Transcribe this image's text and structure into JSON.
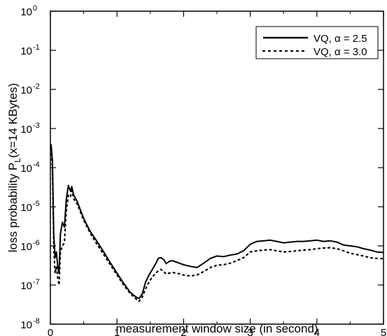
{
  "chart_data": {
    "type": "line",
    "title": "",
    "xlabel": "measurement window size (in second)",
    "ylabel_main": "loss probability P",
    "ylabel_sub": "L",
    "ylabel_tail": "(x=14 KBytes)",
    "xlim": [
      0,
      5
    ],
    "ylim": [
      1e-08,
      1
    ],
    "y_scale": "log",
    "grid": false,
    "legend_position": "top-right",
    "x_ticks": [
      {
        "value": 0,
        "label": "0"
      },
      {
        "value": 1,
        "label": "1"
      },
      {
        "value": 2,
        "label": "2"
      },
      {
        "value": 3,
        "label": "3"
      },
      {
        "value": 4,
        "label": "4"
      },
      {
        "value": 5,
        "label": "5"
      }
    ],
    "y_ticks": [
      {
        "value": 1e-08,
        "base": "10",
        "exp": "-8"
      },
      {
        "value": 1e-07,
        "base": "10",
        "exp": "-7"
      },
      {
        "value": 1e-06,
        "base": "10",
        "exp": "-6"
      },
      {
        "value": 1e-05,
        "base": "10",
        "exp": "-5"
      },
      {
        "value": 0.0001,
        "base": "10",
        "exp": "-4"
      },
      {
        "value": 0.001,
        "base": "10",
        "exp": "-3"
      },
      {
        "value": 0.01,
        "base": "10",
        "exp": "-2"
      },
      {
        "value": 0.1,
        "base": "10",
        "exp": "-1"
      },
      {
        "value": 1,
        "base": "10",
        "exp": "0"
      }
    ],
    "series": [
      {
        "name": "VQ, α = 2.5",
        "style": "solid",
        "color": "#000000",
        "points": [
          [
            0.01,
            0.0004
          ],
          [
            0.03,
            0.00015
          ],
          [
            0.05,
            2e-06
          ],
          [
            0.07,
            5e-07
          ],
          [
            0.09,
            7e-07
          ],
          [
            0.11,
            3e-07
          ],
          [
            0.13,
            2e-07
          ],
          [
            0.15,
            2e-06
          ],
          [
            0.18,
            4e-06
          ],
          [
            0.21,
            3e-06
          ],
          [
            0.24,
            1.6e-05
          ],
          [
            0.27,
            3.5e-05
          ],
          [
            0.3,
            2.5e-05
          ],
          [
            0.32,
            3.3e-05
          ],
          [
            0.35,
            2e-05
          ],
          [
            0.4,
            1.4e-05
          ],
          [
            0.5,
            5e-06
          ],
          [
            0.6,
            2.3e-06
          ],
          [
            0.7,
            1.3e-06
          ],
          [
            0.8,
            7e-07
          ],
          [
            0.9,
            3.7e-07
          ],
          [
            1.0,
            2e-07
          ],
          [
            1.1,
            1.1e-07
          ],
          [
            1.2,
            6.5e-08
          ],
          [
            1.28,
            5e-08
          ],
          [
            1.33,
            4.5e-08
          ],
          [
            1.38,
            6e-08
          ],
          [
            1.43,
            1.2e-07
          ],
          [
            1.48,
            1.8e-07
          ],
          [
            1.53,
            2.5e-07
          ],
          [
            1.58,
            3.5e-07
          ],
          [
            1.62,
            4.8e-07
          ],
          [
            1.66,
            5e-07
          ],
          [
            1.7,
            4.5e-07
          ],
          [
            1.74,
            3.5e-07
          ],
          [
            1.78,
            4e-07
          ],
          [
            1.83,
            4.2e-07
          ],
          [
            1.9,
            3.8e-07
          ],
          [
            2.0,
            3.3e-07
          ],
          [
            2.1,
            3e-07
          ],
          [
            2.2,
            2.8e-07
          ],
          [
            2.3,
            3.6e-07
          ],
          [
            2.4,
            4.8e-07
          ],
          [
            2.5,
            5.5e-07
          ],
          [
            2.6,
            5.3e-07
          ],
          [
            2.7,
            5.8e-07
          ],
          [
            2.8,
            6.2e-07
          ],
          [
            2.9,
            7.5e-07
          ],
          [
            3.0,
            1.1e-06
          ],
          [
            3.1,
            1.3e-06
          ],
          [
            3.2,
            1.35e-06
          ],
          [
            3.3,
            1.4e-06
          ],
          [
            3.4,
            1.3e-06
          ],
          [
            3.5,
            1.2e-06
          ],
          [
            3.6,
            1.25e-06
          ],
          [
            3.7,
            1.3e-06
          ],
          [
            3.8,
            1.3e-06
          ],
          [
            3.9,
            1.35e-06
          ],
          [
            4.0,
            1.4e-06
          ],
          [
            4.1,
            1.3e-06
          ],
          [
            4.2,
            1.35e-06
          ],
          [
            4.3,
            1.25e-06
          ],
          [
            4.4,
            1.05e-06
          ],
          [
            4.5,
            1e-06
          ],
          [
            4.6,
            9.5e-07
          ],
          [
            4.7,
            8.5e-07
          ],
          [
            4.8,
            7.8e-07
          ],
          [
            4.9,
            7e-07
          ],
          [
            5.0,
            6.8e-07
          ]
        ]
      },
      {
        "name": "VQ, α = 3.0",
        "style": "dotted",
        "color": "#000000",
        "points": [
          [
            0.01,
            0.0003
          ],
          [
            0.03,
            0.0001
          ],
          [
            0.05,
            1e-06
          ],
          [
            0.07,
            2e-07
          ],
          [
            0.09,
            3e-07
          ],
          [
            0.11,
            1.5e-07
          ],
          [
            0.13,
            1e-07
          ],
          [
            0.15,
            7e-07
          ],
          [
            0.18,
            1e-06
          ],
          [
            0.21,
            1.2e-06
          ],
          [
            0.24,
            8e-06
          ],
          [
            0.27,
            2e-05
          ],
          [
            0.3,
            1.8e-05
          ],
          [
            0.32,
            2.6e-05
          ],
          [
            0.35,
            1.6e-05
          ],
          [
            0.4,
            1.2e-05
          ],
          [
            0.5,
            4.5e-06
          ],
          [
            0.6,
            2.1e-06
          ],
          [
            0.7,
            1.1e-06
          ],
          [
            0.8,
            6e-07
          ],
          [
            0.9,
            3.3e-07
          ],
          [
            1.0,
            1.8e-07
          ],
          [
            1.1,
            1e-07
          ],
          [
            1.2,
            6e-08
          ],
          [
            1.28,
            4.5e-08
          ],
          [
            1.33,
            3.8e-08
          ],
          [
            1.38,
            5e-08
          ],
          [
            1.43,
            8e-08
          ],
          [
            1.48,
            1.2e-07
          ],
          [
            1.53,
            1.6e-07
          ],
          [
            1.58,
            2e-07
          ],
          [
            1.62,
            2.3e-07
          ],
          [
            1.66,
            2.5e-07
          ],
          [
            1.7,
            2.2e-07
          ],
          [
            1.74,
            1.9e-07
          ],
          [
            1.78,
            2e-07
          ],
          [
            1.83,
            2.1e-07
          ],
          [
            1.9,
            2e-07
          ],
          [
            2.0,
            1.8e-07
          ],
          [
            2.1,
            1.7e-07
          ],
          [
            2.2,
            1.8e-07
          ],
          [
            2.3,
            2.2e-07
          ],
          [
            2.4,
            2.8e-07
          ],
          [
            2.5,
            3.2e-07
          ],
          [
            2.6,
            3.3e-07
          ],
          [
            2.7,
            3.6e-07
          ],
          [
            2.8,
            4.2e-07
          ],
          [
            2.9,
            5e-07
          ],
          [
            3.0,
            7e-07
          ],
          [
            3.1,
            7.5e-07
          ],
          [
            3.2,
            7.8e-07
          ],
          [
            3.3,
            8e-07
          ],
          [
            3.4,
            7.5e-07
          ],
          [
            3.5,
            7e-07
          ],
          [
            3.6,
            7.2e-07
          ],
          [
            3.7,
            7.5e-07
          ],
          [
            3.8,
            7.8e-07
          ],
          [
            3.9,
            8e-07
          ],
          [
            4.0,
            8.5e-07
          ],
          [
            4.1,
            8.8e-07
          ],
          [
            4.2,
            9e-07
          ],
          [
            4.3,
            8.5e-07
          ],
          [
            4.4,
            7.5e-07
          ],
          [
            4.5,
            6.5e-07
          ],
          [
            4.6,
            6e-07
          ],
          [
            4.7,
            5.5e-07
          ],
          [
            4.8,
            5e-07
          ],
          [
            4.9,
            4.8e-07
          ],
          [
            5.0,
            4.7e-07
          ]
        ]
      }
    ]
  }
}
